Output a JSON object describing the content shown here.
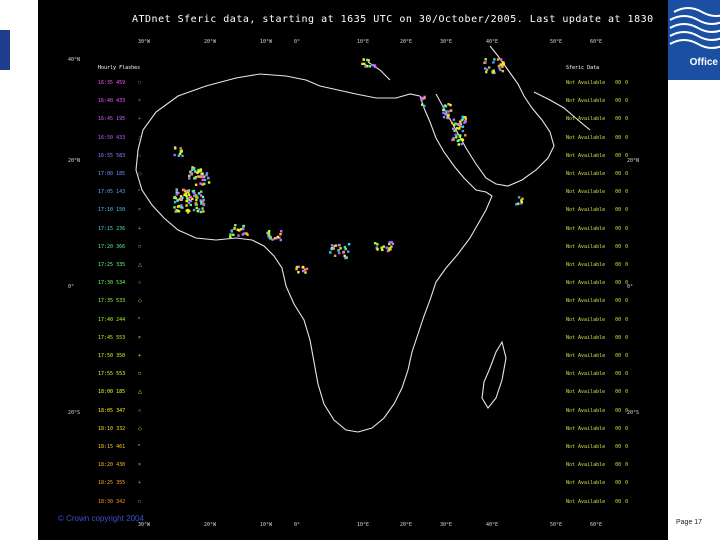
{
  "title": "ATDnet Sferic data, starting at 1635 UTC on 30/October/2005. Last update at 1830",
  "lon_labels": [
    "30°W",
    "20°W",
    "10°W",
    "0°",
    "10°E",
    "20°E",
    "30°E",
    "40°E",
    "50°E",
    "60°E"
  ],
  "lat_labels_left": [
    "40°N",
    "20°N",
    "0°",
    "20°S"
  ],
  "lat_labels_right": [
    "20°N",
    "0°",
    "20°S"
  ],
  "legend_left_header": "Hourly Flashes",
  "legend_right_header": "Sferic Data",
  "time_rows": [
    {
      "time": "16:35",
      "count": "459",
      "color": "#ff55ff"
    },
    {
      "time": "16:40",
      "count": "433",
      "color": "#ff55ff"
    },
    {
      "time": "16:45",
      "count": "195",
      "color": "#cc66ff"
    },
    {
      "time": "16:50",
      "count": "433",
      "color": "#aa66ff"
    },
    {
      "time": "16:55",
      "count": "583",
      "color": "#8888ff"
    },
    {
      "time": "17:00",
      "count": "185",
      "color": "#6699ff"
    },
    {
      "time": "17:05",
      "count": "143",
      "color": "#55aaff"
    },
    {
      "time": "17:10",
      "count": "150",
      "color": "#44ccff"
    },
    {
      "time": "17:15",
      "count": "236",
      "color": "#44ddcc"
    },
    {
      "time": "17:20",
      "count": "366",
      "color": "#55ee99"
    },
    {
      "time": "17:25",
      "count": "335",
      "color": "#66ff77"
    },
    {
      "time": "17:30",
      "count": "534",
      "color": "#77ff55"
    },
    {
      "time": "17:35",
      "count": "533",
      "color": "#99ff44"
    },
    {
      "time": "17:40",
      "count": "244",
      "color": "#aaff33"
    },
    {
      "time": "17:45",
      "count": "553",
      "color": "#bbff22"
    },
    {
      "time": "17:50",
      "count": "350",
      "color": "#ccff22"
    },
    {
      "time": "17:55",
      "count": "553",
      "color": "#ddff22"
    },
    {
      "time": "18:00",
      "count": "185",
      "color": "#eeff22"
    },
    {
      "time": "18:05",
      "count": "347",
      "color": "#ffee22"
    },
    {
      "time": "18:10",
      "count": "332",
      "color": "#ffdd22"
    },
    {
      "time": "18:15",
      "count": "461",
      "color": "#ffcc22"
    },
    {
      "time": "18:20",
      "count": "430",
      "color": "#ffbb22"
    },
    {
      "time": "18:25",
      "count": "355",
      "color": "#ffaa22"
    },
    {
      "time": "18:30",
      "count": "342",
      "color": "#ff9922"
    }
  ],
  "status_text": "Not Available",
  "status_values": [
    "00",
    "0"
  ],
  "footer_left": "© Crown copyright 2004",
  "footer_right": "Page 17",
  "logo_text": "Office",
  "colors": {
    "coast": "#e6e6e6",
    "background": "#000000",
    "logo": "#1a4fa3"
  }
}
